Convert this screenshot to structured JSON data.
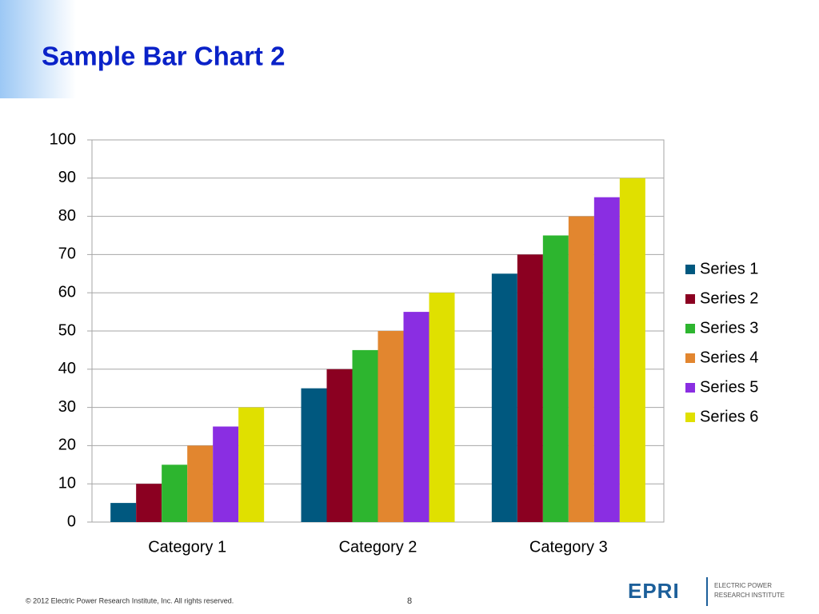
{
  "chart_data": {
    "type": "bar",
    "title": "Sample Bar Chart 2",
    "categories": [
      "Category 1",
      "Category 2",
      "Category 3"
    ],
    "series": [
      {
        "name": "Series 1",
        "color": "#00587f",
        "values": [
          5,
          35,
          65
        ]
      },
      {
        "name": "Series 2",
        "color": "#8b0021",
        "values": [
          10,
          40,
          70
        ]
      },
      {
        "name": "Series 3",
        "color": "#2db52f",
        "values": [
          15,
          45,
          75
        ]
      },
      {
        "name": "Series 4",
        "color": "#e2862f",
        "values": [
          20,
          50,
          80
        ]
      },
      {
        "name": "Series 5",
        "color": "#8a2ee2",
        "values": [
          25,
          55,
          85
        ]
      },
      {
        "name": "Series 6",
        "color": "#e0e000",
        "values": [
          30,
          60,
          90
        ]
      }
    ],
    "ylim": [
      0,
      100
    ],
    "yticks": [
      0,
      10,
      20,
      30,
      40,
      50,
      60,
      70,
      80,
      90,
      100
    ],
    "grid": true,
    "legend": "right"
  },
  "footer": {
    "copyright": "© 2012 Electric Power Research Institute, Inc. All rights reserved.",
    "page_number": "8",
    "logo": "EPRI",
    "logo_tagline_1": "ELECTRIC POWER",
    "logo_tagline_2": "RESEARCH INSTITUTE"
  }
}
